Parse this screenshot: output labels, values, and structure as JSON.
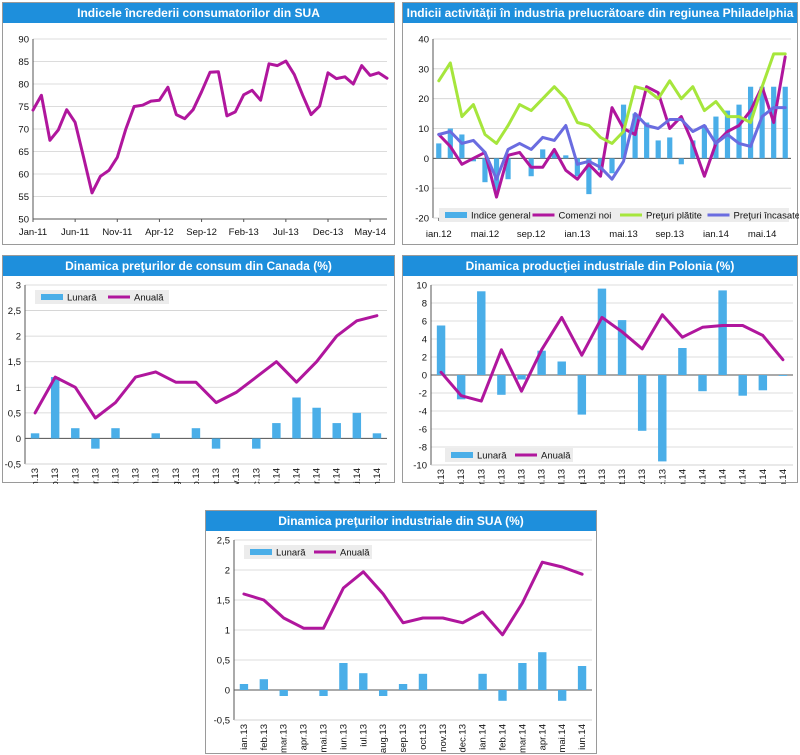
{
  "charts": [
    {
      "id": "c1",
      "title": "Indicele încrederii consumatorilor din SUA",
      "colors": {
        "line": "#b0169d"
      },
      "chart_data": {
        "type": "line",
        "title": "Indicele încrederii consumatorilor din SUA",
        "ylim": [
          50,
          90
        ],
        "yticks": [
          50,
          55,
          60,
          65,
          70,
          75,
          80,
          85,
          90
        ],
        "xticklabels": [
          "Jan-11",
          "Jun-11",
          "Nov-11",
          "Apr-12",
          "Sep-12",
          "Feb-13",
          "Jul-13",
          "Dec-13",
          "May-14"
        ],
        "xtick_index": [
          0,
          5,
          10,
          15,
          20,
          25,
          30,
          35,
          40
        ],
        "grid": "horizontal",
        "legend": "none",
        "series": [
          {
            "values": [
              74.2,
              77.5,
              67.5,
              69.8,
              74.3,
              71.5,
              63.7,
              55.8,
              59.5,
              60.8,
              63.7,
              69.9,
              75.0,
              75.3,
              76.2,
              76.4,
              79.3,
              73.2,
              72.3,
              74.3,
              78.3,
              82.6,
              82.7,
              72.9,
              73.8,
              77.6,
              78.6,
              76.4,
              84.5,
              84.1,
              85.1,
              82.1,
              77.5,
              73.2,
              75.1,
              82.5,
              81.2,
              81.6,
              80.0,
              84.1,
              81.9,
              82.5,
              81.3
            ]
          }
        ]
      }
    },
    {
      "id": "c2",
      "title": "Indicii activităţii în industria prelucrătoare din regiunea Philadelphia",
      "colors": {
        "bar": "#4aaee8",
        "s1": "#b0169d",
        "s2": "#a6e63c",
        "s3": "#6a6ce0"
      },
      "chart_data": {
        "type": "bar+line",
        "title": "Indicii activităţii în industria prelucrătoare din regiunea Philadelphia",
        "ylim": [
          -20,
          40
        ],
        "yticks": [
          -20,
          -10,
          0,
          10,
          20,
          30,
          40
        ],
        "xticklabels": [
          "ian.12",
          "mai.12",
          "sep.12",
          "ian.13",
          "mai.13",
          "sep.13",
          "ian.14",
          "mai.14"
        ],
        "xtick_index": [
          0,
          4,
          8,
          12,
          16,
          20,
          24,
          28
        ],
        "grid": "horizontal",
        "legend": "bottom",
        "bar_series": {
          "name": "Indice general",
          "values": [
            5,
            10,
            8,
            -1,
            -8,
            -11,
            -7,
            0,
            -6,
            3,
            2,
            1,
            -6,
            -12,
            -4,
            -5,
            18,
            15,
            12,
            6,
            7,
            -2,
            6,
            11,
            14,
            16,
            18,
            24,
            24,
            24,
            24
          ]
        },
        "series": [
          {
            "name": "Comenzi noi",
            "values": [
              8,
              4,
              -2,
              0,
              2,
              -13,
              1,
              2,
              -3,
              -3,
              3,
              -4,
              -7,
              -2,
              -6,
              17,
              10,
              8,
              24,
              22,
              10,
              14,
              5,
              -6,
              5,
              9,
              11,
              16,
              24,
              12,
              34
            ]
          },
          {
            "name": "Preţuri plătite",
            "values": [
              26,
              32,
              14,
              18,
              8,
              5,
              11,
              18,
              16,
              20,
              24,
              20,
              12,
              11,
              7,
              5,
              9,
              24,
              23,
              20,
              26,
              20,
              24,
              16,
              19,
              14,
              14,
              12,
              24,
              35,
              35
            ]
          },
          {
            "name": "Preţuri încasate",
            "values": [
              8,
              9,
              5,
              6,
              2,
              -7,
              3,
              5,
              3,
              7,
              6,
              11,
              -2,
              -1,
              -3,
              -7,
              -1,
              15,
              11,
              10,
              13,
              13,
              9,
              11,
              5,
              8,
              5,
              4,
              14,
              17,
              17
            ]
          }
        ]
      }
    },
    {
      "id": "c3",
      "title": "Dinamica preţurilor de consum din Canada (%)",
      "colors": {
        "bar": "#4aaee8",
        "line": "#b0169d"
      },
      "chart_data": {
        "type": "bar+line",
        "title": "Dinamica preţurilor de consum din Canada (%)",
        "ylim": [
          -0.5,
          3
        ],
        "yticks": [
          -0.5,
          0,
          0.5,
          1,
          1.5,
          2,
          2.5,
          3
        ],
        "categories": [
          "ian.13",
          "feb.13",
          "mar.13",
          "apr.13",
          "mai.13",
          "iun.13",
          "iul.13",
          "aug.13",
          "sep.13",
          "oct.13",
          "nov.13",
          "dec.13",
          "ian.14",
          "feb.14",
          "mar.14",
          "apr.14",
          "mai.14",
          "iun.14"
        ],
        "grid": "horizontal",
        "legend": "top-left",
        "bar_series": {
          "name": "Lunară",
          "values": [
            0.1,
            1.2,
            0.2,
            -0.2,
            0.2,
            0.0,
            0.1,
            0.0,
            0.2,
            -0.2,
            0.0,
            -0.2,
            0.3,
            0.8,
            0.6,
            0.3,
            0.5,
            0.1
          ]
        },
        "series": [
          {
            "name": "Anuală",
            "values": [
              0.5,
              1.2,
              1.0,
              0.4,
              0.7,
              1.2,
              1.3,
              1.1,
              1.1,
              0.7,
              0.9,
              1.2,
              1.5,
              1.1,
              1.5,
              2.0,
              2.3,
              2.4
            ]
          }
        ]
      }
    },
    {
      "id": "c4",
      "title": "Dinamica producţiei industriale din Polonia (%)",
      "colors": {
        "bar": "#4aaee8",
        "line": "#b0169d"
      },
      "chart_data": {
        "type": "bar+line",
        "title": "Dinamica producţiei industriale din Polonia (%)",
        "ylim": [
          -10,
          10
        ],
        "yticks": [
          -10,
          -8,
          -6,
          -4,
          -2,
          0,
          2,
          4,
          6,
          8,
          10
        ],
        "categories": [
          "ian.13",
          "feb.13",
          "mar.13",
          "apr.13",
          "mai.13",
          "iun.13",
          "iul.13",
          "aug.13",
          "sep.13",
          "oct.13",
          "nov.13",
          "dec.13",
          "ian.14",
          "feb.14",
          "mar.14",
          "apr.14",
          "mai.14",
          "iun.14"
        ],
        "grid": "horizontal",
        "legend": "bottom-left",
        "bar_series": {
          "name": "Lunară",
          "values": [
            5.5,
            -2.7,
            9.3,
            -2.2,
            -0.5,
            2.7,
            1.5,
            -4.4,
            9.6,
            6.1,
            -6.2,
            -9.6,
            3.0,
            -1.8,
            9.4,
            -2.3,
            -1.7,
            -0.1
          ]
        },
        "series": [
          {
            "name": "Anuală",
            "values": [
              0.3,
              -2.3,
              -2.9,
              2.8,
              -1.8,
              2.8,
              6.4,
              2.2,
              6.4,
              4.8,
              2.9,
              6.7,
              4.2,
              5.3,
              5.5,
              5.5,
              4.4,
              1.7
            ]
          }
        ]
      }
    },
    {
      "id": "c5",
      "title": "Dinamica preţurilor industriale din SUA (%)",
      "colors": {
        "bar": "#4aaee8",
        "line": "#b0169d"
      },
      "chart_data": {
        "type": "bar+line",
        "title": "Dinamica preţurilor industriale din SUA (%)",
        "ylim": [
          -0.5,
          2.5
        ],
        "yticks": [
          -0.5,
          0,
          0.5,
          1,
          1.5,
          2,
          2.5
        ],
        "categories": [
          "ian.13",
          "feb.13",
          "mar.13",
          "apr.13",
          "mai.13",
          "iun.13",
          "iul.13",
          "aug.13",
          "sep.13",
          "oct.13",
          "nov.13",
          "dec.13",
          "ian.14",
          "feb.14",
          "mar.14",
          "apr.14",
          "mai.14",
          "iun.14"
        ],
        "grid": "horizontal",
        "legend": "top-left",
        "bar_series": {
          "name": "Lunară",
          "values": [
            0.1,
            0.18,
            -0.1,
            0.0,
            -0.1,
            0.45,
            0.28,
            -0.1,
            0.1,
            0.27,
            0.0,
            0.0,
            0.27,
            -0.18,
            0.45,
            0.63,
            -0.18,
            0.4
          ]
        },
        "series": [
          {
            "name": "Anuală",
            "values": [
              1.6,
              1.5,
              1.2,
              1.03,
              1.03,
              1.7,
              1.97,
              1.6,
              1.12,
              1.2,
              1.2,
              1.12,
              1.3,
              0.92,
              1.45,
              2.13,
              2.05,
              1.93
            ]
          }
        ]
      }
    }
  ]
}
